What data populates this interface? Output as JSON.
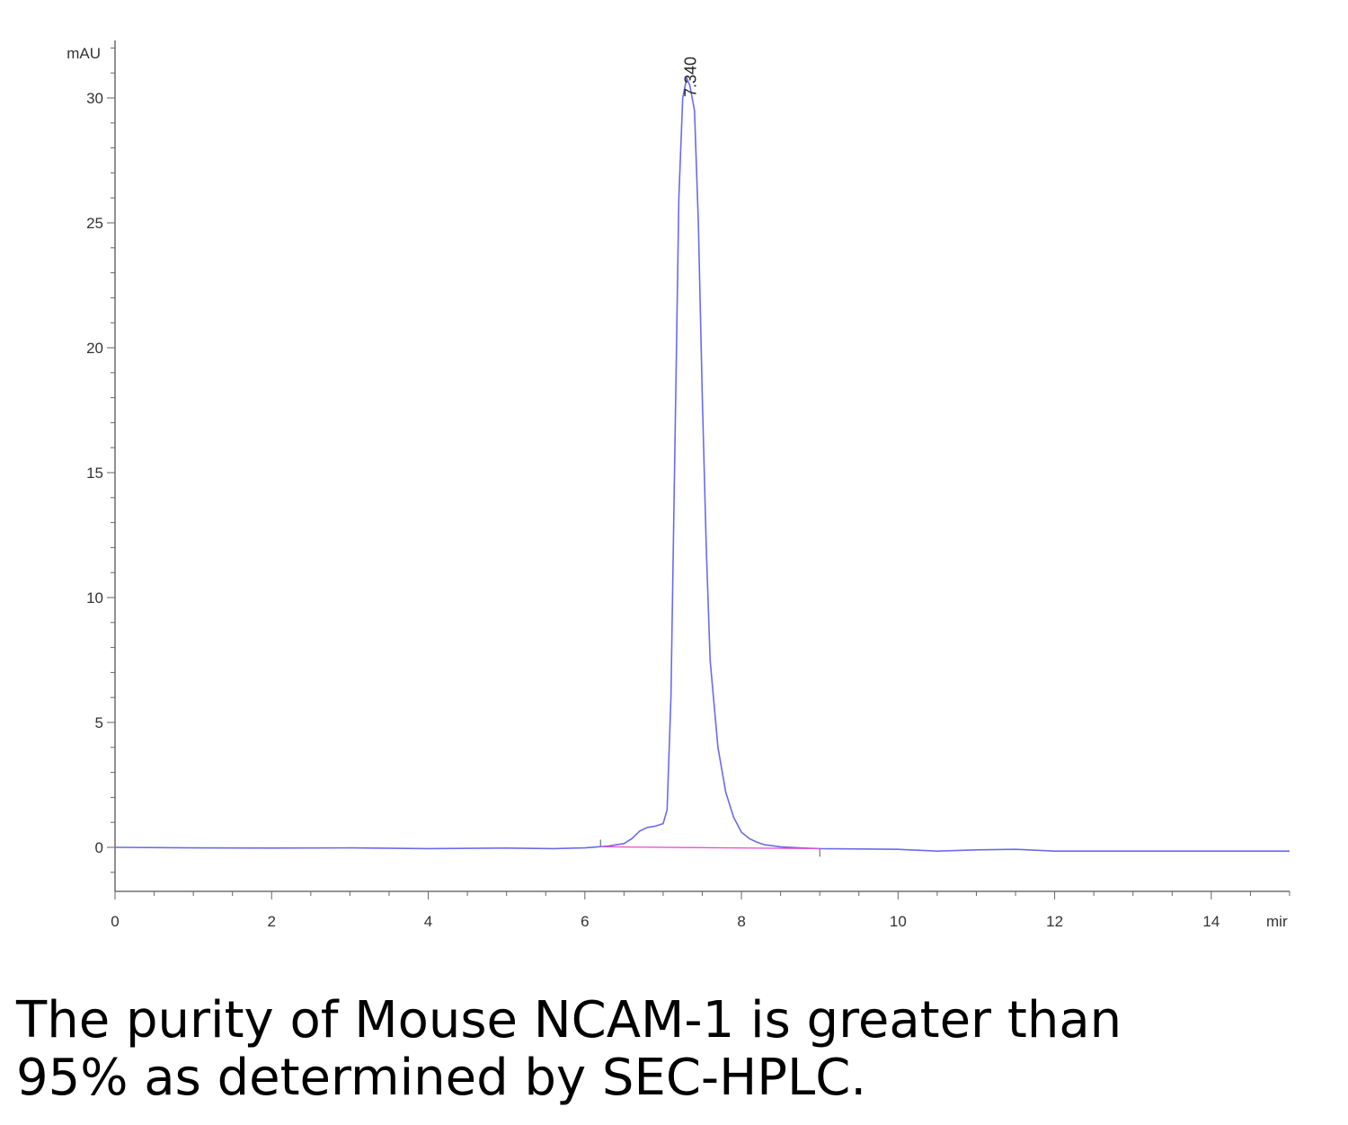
{
  "chart_data": {
    "type": "line",
    "y_unit": "mAU",
    "x_unit": "mir",
    "xlim": [
      0,
      15
    ],
    "ylim": [
      -1.8,
      32.5
    ],
    "x_ticks": [
      0,
      2,
      4,
      6,
      8,
      10,
      12,
      14
    ],
    "y_ticks": [
      0,
      5,
      10,
      15,
      20,
      25,
      30
    ],
    "grid": false,
    "peak_label": "7.340",
    "peak_label_x": 7.34,
    "series": [
      {
        "color": "#6b6bea",
        "x": [
          0,
          1,
          2,
          3,
          4,
          5,
          5.6,
          6.0,
          6.3,
          6.5,
          6.6,
          6.7,
          6.8,
          6.9,
          7.0,
          7.05,
          7.1,
          7.15,
          7.2,
          7.25,
          7.3,
          7.34,
          7.4,
          7.45,
          7.5,
          7.55,
          7.6,
          7.7,
          7.8,
          7.9,
          8.0,
          8.1,
          8.2,
          8.3,
          8.5,
          8.8,
          9.0,
          10.0,
          10.5,
          11.0,
          11.5,
          12.0,
          13.0,
          14.0,
          15.0
        ],
        "y": [
          0,
          -0.02,
          -0.03,
          -0.02,
          -0.05,
          -0.03,
          -0.05,
          -0.02,
          0.05,
          0.15,
          0.35,
          0.65,
          0.8,
          0.85,
          0.95,
          1.5,
          6.0,
          16.0,
          26.0,
          30.0,
          30.8,
          30.5,
          29.5,
          25.0,
          18.0,
          12.0,
          7.5,
          4.0,
          2.2,
          1.2,
          0.6,
          0.35,
          0.2,
          0.1,
          0.02,
          -0.03,
          -0.05,
          -0.08,
          -0.15,
          -0.1,
          -0.08,
          -0.15,
          -0.15,
          -0.15,
          -0.15
        ]
      },
      {
        "color": "#e94fd3",
        "x": [
          6.2,
          9.0
        ],
        "y": [
          0.02,
          -0.05
        ]
      }
    ]
  },
  "caption": {
    "line1": "The purity of Mouse NCAM-1 is greater than",
    "line2": "95% as determined by SEC-HPLC."
  }
}
